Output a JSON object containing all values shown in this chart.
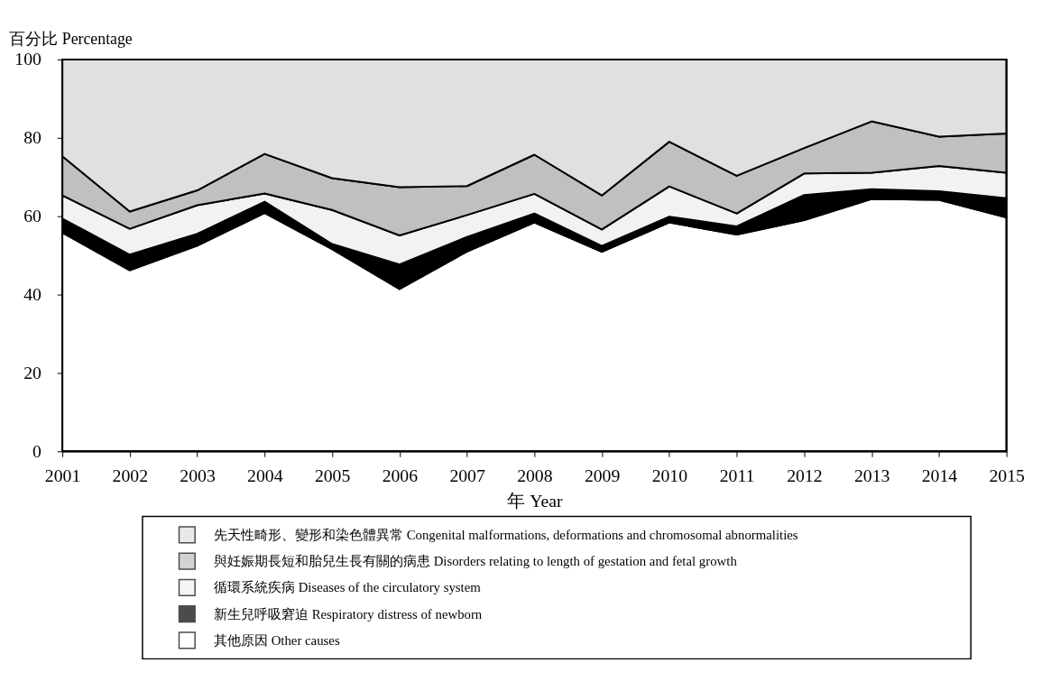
{
  "chart_data": {
    "type": "area",
    "stacked": true,
    "xlabel": "年 Year",
    "ylabel": "百分比 Percentage",
    "x": [
      2001,
      2002,
      2003,
      2004,
      2005,
      2006,
      2007,
      2008,
      2009,
      2010,
      2011,
      2012,
      2013,
      2014,
      2015
    ],
    "xlim": [
      2001,
      2015
    ],
    "xticks": [
      2001,
      2002,
      2003,
      2004,
      2005,
      2006,
      2007,
      2008,
      2009,
      2010,
      2011,
      2012,
      2013,
      2014,
      2015
    ],
    "ylim": [
      0,
      100
    ],
    "yticks": [
      0,
      20,
      40,
      60,
      80,
      100
    ],
    "legend": "bottom",
    "series": [
      {
        "name": "其他原因 Other causes",
        "color": "#ffffff",
        "values": [
          55.8,
          46.2,
          52.5,
          60.8,
          51.6,
          41.4,
          51.0,
          58.4,
          50.9,
          58.4,
          55.3,
          59.0,
          64.4,
          64.2,
          59.7
        ]
      },
      {
        "name": "新生兒呼吸窘迫 Respiratory distress of newborn",
        "color": "#000000",
        "values": [
          3.6,
          4.0,
          3.0,
          2.9,
          1.3,
          6.3,
          3.7,
          2.3,
          1.5,
          1.5,
          2.1,
          6.4,
          2.5,
          2.2,
          4.9
        ]
      },
      {
        "name": "循環系統疾病 Diseases of the circulatory system",
        "color": "#f2f2f2",
        "values": [
          5.9,
          6.6,
          7.3,
          2.1,
          8.7,
          7.4,
          5.6,
          5.0,
          4.2,
          7.7,
          3.3,
          5.5,
          4.2,
          6.4,
          6.5
        ]
      },
      {
        "name": "與妊娠期長短和胎兒生長有關的病患 Disorders relating to length of gestation and fetal growth",
        "color": "#c0c0c0",
        "values": [
          10.0,
          4.4,
          3.8,
          10.1,
          8.1,
          12.3,
          7.4,
          10.0,
          8.7,
          11.4,
          9.6,
          6.5,
          13.1,
          7.5,
          10.0
        ]
      },
      {
        "name": "先天性畸形、變形和染色體異常 Congenital malformations, deformations and chromosomal abnormalities",
        "color": "#e0e0e0",
        "values": [
          24.7,
          38.8,
          33.4,
          24.1,
          30.3,
          32.6,
          32.3,
          24.3,
          34.7,
          21.0,
          29.7,
          22.6,
          15.8,
          19.7,
          18.9
        ]
      }
    ]
  }
}
